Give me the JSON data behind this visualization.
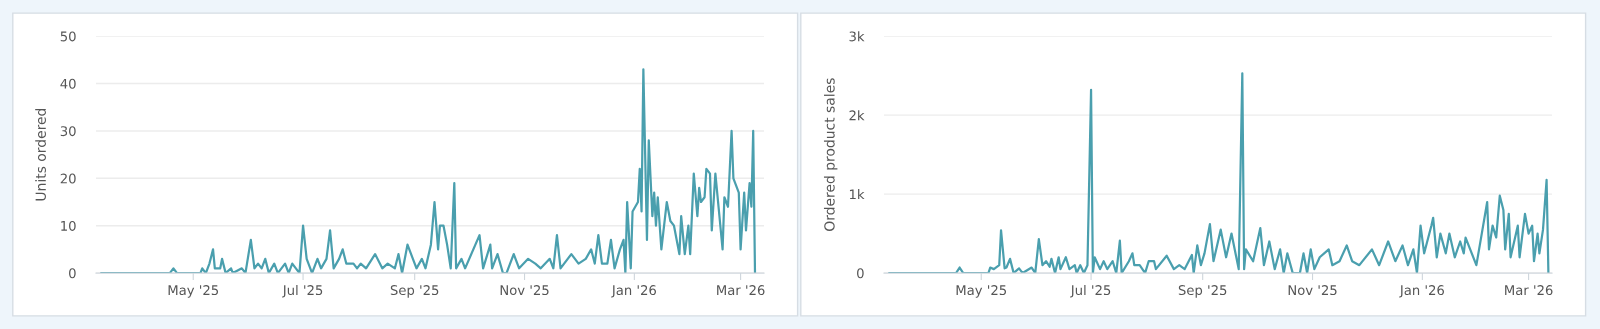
{
  "chart_data": [
    {
      "type": "line",
      "ylabel": "Units ordered",
      "ylim": [
        0,
        50
      ],
      "yticks": [
        0,
        10,
        20,
        30,
        40,
        50
      ],
      "xlim": [
        "2025-03-08",
        "2026-03-14"
      ],
      "xticks": [
        {
          "value": "2025-05-01",
          "label": "May '25"
        },
        {
          "value": "2025-07-01",
          "label": "Jul '25"
        },
        {
          "value": "2025-09-01",
          "label": "Sep '25"
        },
        {
          "value": "2025-11-01",
          "label": "Nov '25"
        },
        {
          "value": "2026-01-01",
          "label": "Jan '26"
        },
        {
          "value": "2026-03-01",
          "label": "Mar '26"
        }
      ],
      "grid": "y",
      "legend": false,
      "marker": "none",
      "line_style": "solid",
      "series": [
        {
          "color": "#4a9fae",
          "x": [
            "2025-03-11",
            "2025-04-18",
            "2025-04-20",
            "2025-04-22",
            "2025-05-05",
            "2025-05-06",
            "2025-05-08",
            "2025-05-10",
            "2025-05-12",
            "2025-05-13",
            "2025-05-16",
            "2025-05-17",
            "2025-05-19",
            "2025-05-22",
            "2025-05-23",
            "2025-05-28",
            "2025-05-30",
            "2025-06-02",
            "2025-06-04",
            "2025-06-06",
            "2025-06-08",
            "2025-06-10",
            "2025-06-12",
            "2025-06-15",
            "2025-06-17",
            "2025-06-21",
            "2025-06-23",
            "2025-06-25",
            "2025-06-29",
            "2025-07-01",
            "2025-07-03",
            "2025-07-06",
            "2025-07-09",
            "2025-07-11",
            "2025-07-14",
            "2025-07-16",
            "2025-07-18",
            "2025-07-21",
            "2025-07-23",
            "2025-07-25",
            "2025-07-29",
            "2025-07-31",
            "2025-08-02",
            "2025-08-05",
            "2025-08-10",
            "2025-08-14",
            "2025-08-17",
            "2025-08-21",
            "2025-08-23",
            "2025-08-25",
            "2025-08-28",
            "2025-09-02",
            "2025-09-05",
            "2025-09-07",
            "2025-09-10",
            "2025-09-12",
            "2025-09-14",
            "2025-09-15",
            "2025-09-17",
            "2025-09-19",
            "2025-09-21",
            "2025-09-23",
            "2025-09-24",
            "2025-09-27",
            "2025-09-29",
            "2025-10-07",
            "2025-10-09",
            "2025-10-13",
            "2025-10-14",
            "2025-10-17",
            "2025-10-20",
            "2025-10-22",
            "2025-10-26",
            "2025-10-29",
            "2025-11-03",
            "2025-11-07",
            "2025-11-10",
            "2025-11-15",
            "2025-11-17",
            "2025-11-19",
            "2025-11-21",
            "2025-11-27",
            "2025-12-01",
            "2025-12-05",
            "2025-12-08",
            "2025-12-10",
            "2025-12-12",
            "2025-12-14",
            "2025-12-17",
            "2025-12-19",
            "2025-12-21",
            "2025-12-24",
            "2025-12-26",
            "2025-12-27",
            "2025-12-28",
            "2025-12-30",
            "2025-12-31",
            "2026-01-03",
            "2026-01-04",
            "2026-01-05",
            "2026-01-06",
            "2026-01-08",
            "2026-01-09",
            "2026-01-11",
            "2026-01-12",
            "2026-01-13",
            "2026-01-14",
            "2026-01-16",
            "2026-01-19",
            "2026-01-21",
            "2026-01-23",
            "2026-01-26",
            "2026-01-27",
            "2026-01-29",
            "2026-01-31",
            "2026-02-01",
            "2026-02-03",
            "2026-02-05",
            "2026-02-06",
            "2026-02-07",
            "2026-02-09",
            "2026-02-10",
            "2026-02-12",
            "2026-02-13",
            "2026-02-15",
            "2026-02-17",
            "2026-02-19",
            "2026-02-20",
            "2026-02-22",
            "2026-02-24",
            "2026-02-25",
            "2026-02-28",
            "2026-03-01",
            "2026-03-03",
            "2026-03-04",
            "2026-03-06",
            "2026-03-07",
            "2026-03-08",
            "2026-03-09"
          ],
          "values": [
            0,
            0,
            1,
            0,
            0,
            1,
            0,
            2,
            5,
            1,
            1,
            3,
            0,
            1,
            0,
            1,
            0,
            7,
            1,
            2,
            1,
            3,
            0,
            2,
            0,
            2,
            0,
            2,
            0,
            10,
            3,
            0,
            3,
            1,
            3,
            9,
            1,
            3,
            5,
            2,
            2,
            1,
            2,
            1,
            4,
            1,
            2,
            1,
            4,
            0,
            6,
            1,
            3,
            1,
            6,
            15,
            5,
            10,
            10,
            6,
            1,
            19,
            1,
            3,
            1,
            8,
            1,
            6,
            1,
            4,
            0,
            0,
            4,
            1,
            3,
            2,
            1,
            3,
            1,
            8,
            1,
            4,
            2,
            3,
            5,
            2,
            8,
            2,
            2,
            7,
            1,
            5,
            7,
            0,
            15,
            1,
            13,
            15,
            22,
            13,
            43,
            7,
            28,
            12,
            17,
            10,
            16,
            5,
            15,
            11,
            10,
            4,
            12,
            4,
            10,
            4,
            21,
            12,
            18,
            15,
            16,
            22,
            21,
            9,
            21,
            13,
            5,
            16,
            14,
            30,
            20,
            17,
            5,
            17,
            9,
            19,
            14,
            30,
            0
          ]
        }
      ]
    },
    {
      "type": "line",
      "ylabel": "Ordered product sales",
      "ylim": [
        0,
        3000
      ],
      "yticks": [
        0,
        {
          "value": 1000,
          "label": "1k"
        },
        {
          "value": 2000,
          "label": "2k"
        },
        {
          "value": 3000,
          "label": "3k"
        }
      ],
      "xlim": [
        "2025-03-08",
        "2026-03-14"
      ],
      "xticks": [
        {
          "value": "2025-05-01",
          "label": "May '25"
        },
        {
          "value": "2025-07-01",
          "label": "Jul '25"
        },
        {
          "value": "2025-09-01",
          "label": "Sep '25"
        },
        {
          "value": "2025-11-01",
          "label": "Nov '25"
        },
        {
          "value": "2026-01-01",
          "label": "Jan '26"
        },
        {
          "value": "2026-03-01",
          "label": "Mar '26"
        }
      ],
      "grid": "y",
      "legend": false,
      "marker": "none",
      "line_style": "solid",
      "series": [
        {
          "color": "#4a9fae",
          "x": [
            "2025-03-11",
            "2025-04-17",
            "2025-04-19",
            "2025-04-21",
            "2025-05-05",
            "2025-05-06",
            "2025-05-08",
            "2025-05-11",
            "2025-05-12",
            "2025-05-14",
            "2025-05-15",
            "2025-05-17",
            "2025-05-19",
            "2025-05-22",
            "2025-05-24",
            "2025-05-29",
            "2025-05-31",
            "2025-06-02",
            "2025-06-04",
            "2025-06-06",
            "2025-06-08",
            "2025-06-09",
            "2025-06-11",
            "2025-06-13",
            "2025-06-14",
            "2025-06-17",
            "2025-06-19",
            "2025-06-22",
            "2025-06-23",
            "2025-06-25",
            "2025-06-27",
            "2025-06-29",
            "2025-07-01",
            "2025-07-02",
            "2025-07-03",
            "2025-07-06",
            "2025-07-08",
            "2025-07-10",
            "2025-07-13",
            "2025-07-15",
            "2025-07-17",
            "2025-07-18",
            "2025-07-22",
            "2025-07-24",
            "2025-07-25",
            "2025-07-28",
            "2025-07-31",
            "2025-08-02",
            "2025-08-05",
            "2025-08-06",
            "2025-08-12",
            "2025-08-16",
            "2025-08-19",
            "2025-08-22",
            "2025-08-26",
            "2025-08-27",
            "2025-08-29",
            "2025-08-31",
            "2025-09-02",
            "2025-09-05",
            "2025-09-07",
            "2025-09-11",
            "2025-09-14",
            "2025-09-17",
            "2025-09-21",
            "2025-09-23",
            "2025-09-24",
            "2025-09-25",
            "2025-09-29",
            "2025-10-03",
            "2025-10-05",
            "2025-10-08",
            "2025-10-11",
            "2025-10-14",
            "2025-10-16",
            "2025-10-18",
            "2025-10-21",
            "2025-10-25",
            "2025-10-27",
            "2025-10-29",
            "2025-10-31",
            "2025-11-02",
            "2025-11-05",
            "2025-11-10",
            "2025-11-12",
            "2025-11-16",
            "2025-11-20",
            "2025-11-23",
            "2025-11-27",
            "2025-12-04",
            "2025-12-08",
            "2025-12-13",
            "2025-12-17",
            "2025-12-21",
            "2025-12-24",
            "2025-12-27",
            "2025-12-29",
            "2025-12-31",
            "2026-01-02",
            "2026-01-06",
            "2026-01-07",
            "2026-01-09",
            "2026-01-11",
            "2026-01-14",
            "2026-01-16",
            "2026-01-19",
            "2026-01-22",
            "2026-01-24",
            "2026-01-25",
            "2026-01-31",
            "2026-02-03",
            "2026-02-06",
            "2026-02-07",
            "2026-02-09",
            "2026-02-11",
            "2026-02-13",
            "2026-02-15",
            "2026-02-16",
            "2026-02-18",
            "2026-02-19",
            "2026-02-23",
            "2026-02-24",
            "2026-02-27",
            "2026-03-01",
            "2026-03-03",
            "2026-03-04",
            "2026-03-06",
            "2026-03-07",
            "2026-03-09",
            "2026-03-11",
            "2026-03-12"
          ],
          "values": [
            0,
            0,
            70,
            0,
            0,
            70,
            50,
            100,
            540,
            60,
            70,
            180,
            0,
            60,
            0,
            70,
            0,
            430,
            100,
            150,
            80,
            180,
            0,
            200,
            50,
            200,
            50,
            100,
            0,
            100,
            0,
            100,
            2320,
            0,
            200,
            50,
            150,
            50,
            150,
            0,
            410,
            0,
            150,
            250,
            100,
            100,
            0,
            150,
            150,
            50,
            220,
            50,
            100,
            50,
            230,
            0,
            350,
            100,
            250,
            620,
            150,
            550,
            200,
            500,
            50,
            2530,
            50,
            300,
            150,
            570,
            100,
            400,
            50,
            300,
            0,
            250,
            0,
            0,
            250,
            0,
            300,
            50,
            200,
            300,
            100,
            150,
            350,
            150,
            100,
            300,
            100,
            400,
            150,
            350,
            100,
            300,
            0,
            600,
            250,
            600,
            700,
            200,
            500,
            250,
            500,
            200,
            400,
            250,
            450,
            100,
            500,
            900,
            300,
            600,
            450,
            980,
            800,
            300,
            750,
            200,
            600,
            200,
            750,
            500,
            600,
            150,
            500,
            250,
            550,
            1180,
            0
          ]
        }
      ]
    }
  ]
}
